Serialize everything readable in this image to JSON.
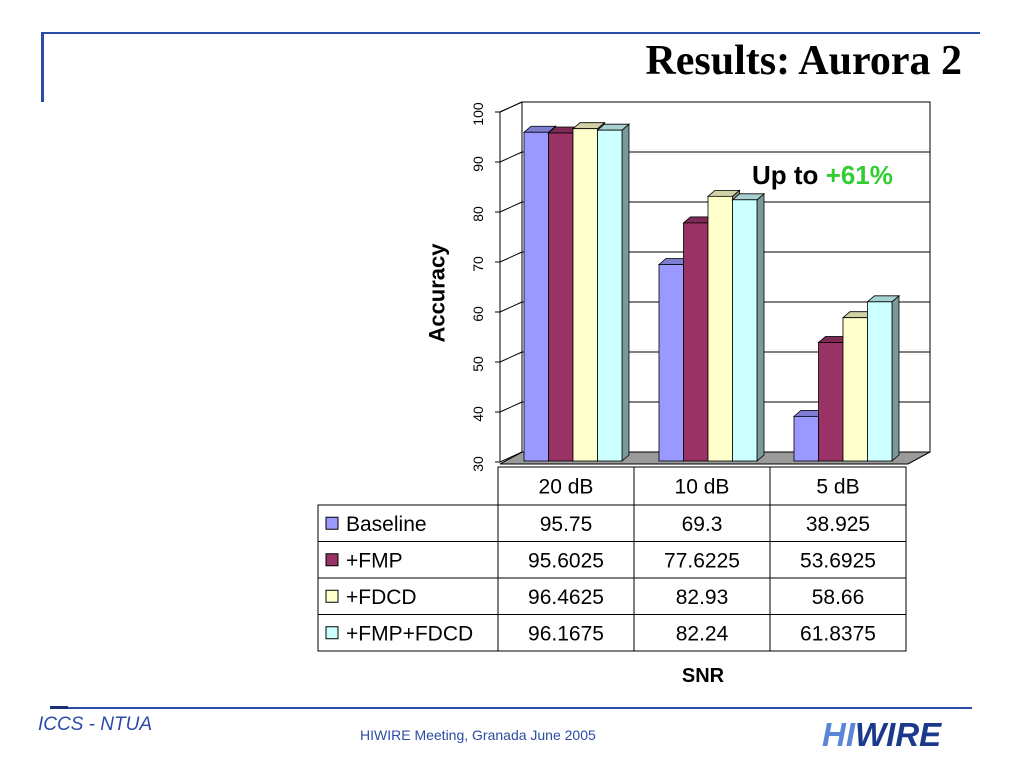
{
  "slide": {
    "title": "Results: Aurora 2",
    "accent_color": "#2B4BA8"
  },
  "chart_data": {
    "type": "bar",
    "subtype": "3d-clustered-column",
    "categories": [
      "20 dB",
      "10 dB",
      "5 dB"
    ],
    "series": [
      {
        "name": "Baseline",
        "color": "#9999FF",
        "values": [
          95.75,
          69.3,
          38.925
        ]
      },
      {
        "name": "+FMP",
        "color": "#993366",
        "values": [
          95.6025,
          77.6225,
          53.6925
        ]
      },
      {
        "name": "+FDCD",
        "color": "#FFFFCC",
        "values": [
          96.4625,
          82.93,
          58.66
        ]
      },
      {
        "name": "+FMP+FDCD",
        "color": "#CCFFFF",
        "values": [
          96.1675,
          82.24,
          61.8375
        ]
      }
    ],
    "xlabel": "SNR",
    "ylabel": "Accuracy",
    "ylim": [
      30,
      100
    ],
    "yticks": [
      30,
      40,
      50,
      60,
      70,
      80,
      90,
      100
    ],
    "grid": true,
    "legend": "data-table",
    "annotation": {
      "prefix": "Up to",
      "highlight": "+61%",
      "highlight_color": "#33CC33"
    }
  },
  "footer": {
    "org": "ICCS - NTUA",
    "event": "HIWIRE Meeting, Granada June 2005",
    "logo": {
      "part1": "HI",
      "part2": "WIRE",
      "color1": "#5A86D8",
      "color2": "#1C3A8C"
    }
  }
}
